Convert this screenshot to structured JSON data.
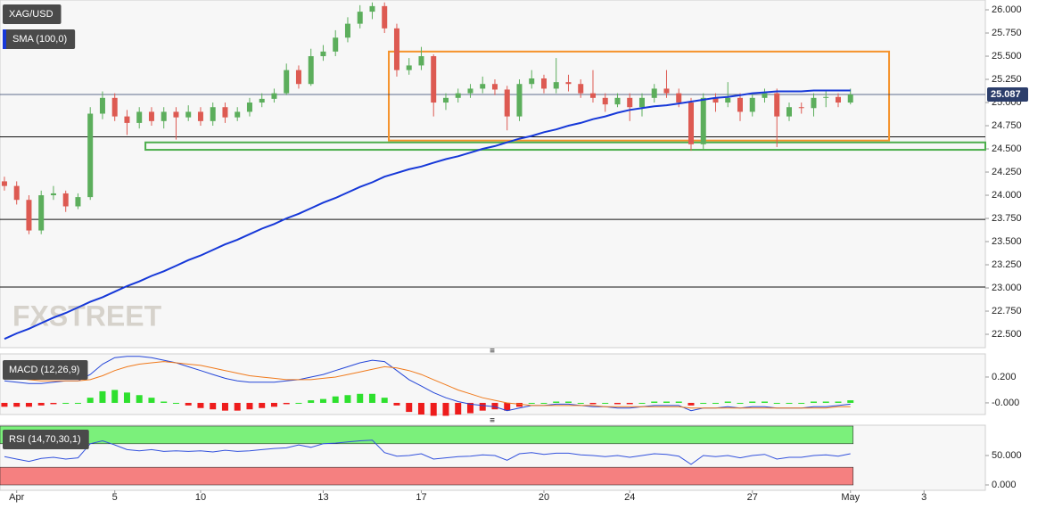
{
  "chart_data": [
    {
      "type": "candlestick",
      "title": "XAG/USD",
      "watermark": "FXSTREET",
      "open": [
        24.15,
        24.1,
        23.95,
        23.62,
        24.0,
        24.02,
        23.88,
        23.98,
        24.88,
        25.05,
        24.85,
        24.78,
        24.9,
        24.8,
        24.9,
        24.84,
        24.9,
        24.8,
        24.95,
        24.84,
        24.9,
        25.0,
        25.04,
        25.1,
        25.35,
        25.2,
        25.5,
        25.55,
        25.7,
        25.85,
        25.98,
        26.04,
        25.8,
        25.35,
        25.4,
        25.5,
        25.0,
        25.05,
        25.1,
        25.15,
        25.2,
        25.14,
        24.85,
        25.2,
        25.26,
        25.15,
        25.22,
        25.2,
        25.1,
        25.05,
        24.98,
        25.05,
        24.95,
        25.05,
        25.15,
        25.1,
        25.0,
        24.55,
        25.05,
        25.0,
        25.05,
        24.9,
        25.05,
        25.1,
        24.85,
        24.95,
        24.94,
        25.05,
        25.06,
        25.0
      ],
      "high": [
        24.2,
        24.15,
        24.0,
        24.05,
        24.1,
        24.05,
        24.02,
        24.95,
        25.12,
        25.1,
        24.92,
        24.95,
        24.95,
        24.95,
        24.95,
        24.97,
        24.95,
        25.0,
        25.0,
        24.95,
        25.05,
        25.1,
        25.15,
        25.42,
        25.4,
        25.58,
        25.62,
        25.78,
        25.92,
        26.05,
        26.08,
        26.08,
        25.85,
        25.48,
        25.6,
        25.52,
        25.1,
        25.15,
        25.2,
        25.28,
        25.25,
        25.18,
        25.25,
        25.35,
        25.3,
        25.48,
        25.3,
        25.25,
        25.35,
        25.1,
        25.1,
        25.1,
        25.1,
        25.2,
        25.35,
        25.15,
        25.05,
        25.1,
        25.1,
        25.22,
        25.1,
        25.1,
        25.15,
        25.15,
        25.0,
        25.0,
        25.1,
        25.12,
        25.1,
        25.15
      ],
      "low": [
        24.05,
        23.9,
        23.58,
        23.58,
        23.95,
        23.82,
        23.85,
        23.95,
        24.82,
        24.8,
        24.65,
        24.72,
        24.75,
        24.72,
        24.6,
        24.8,
        24.75,
        24.75,
        24.78,
        24.8,
        24.85,
        24.95,
        25.0,
        25.08,
        25.15,
        25.18,
        25.45,
        25.5,
        25.65,
        25.8,
        25.9,
        25.75,
        25.28,
        25.3,
        25.35,
        24.85,
        24.92,
        25.0,
        25.05,
        25.1,
        25.08,
        24.7,
        24.8,
        25.15,
        25.1,
        25.1,
        25.12,
        25.05,
        25.0,
        24.9,
        24.95,
        24.8,
        24.85,
        25.0,
        25.05,
        24.95,
        24.48,
        24.5,
        24.9,
        24.95,
        24.8,
        24.85,
        25.0,
        24.52,
        24.8,
        24.88,
        24.85,
        24.95,
        24.95,
        24.98
      ],
      "close": [
        24.1,
        23.95,
        23.62,
        24.0,
        24.02,
        23.88,
        23.98,
        24.88,
        25.05,
        24.85,
        24.78,
        24.9,
        24.8,
        24.9,
        24.84,
        24.9,
        24.8,
        24.95,
        24.84,
        24.9,
        25.0,
        25.04,
        25.1,
        25.35,
        25.2,
        25.5,
        25.55,
        25.7,
        25.85,
        25.98,
        26.04,
        25.8,
        25.35,
        25.4,
        25.5,
        25.0,
        25.05,
        25.1,
        25.15,
        25.2,
        25.14,
        24.85,
        25.2,
        25.26,
        25.15,
        25.22,
        25.2,
        25.1,
        25.05,
        24.98,
        25.05,
        24.95,
        25.05,
        25.15,
        25.1,
        25.0,
        24.55,
        25.05,
        25.0,
        25.05,
        24.9,
        25.05,
        25.1,
        24.85,
        24.95,
        24.94,
        25.05,
        25.06,
        25.0,
        25.087
      ],
      "up_color": "#5cae5c",
      "down_color": "#dd5a52",
      "sma": {
        "name": "SMA (100,0)",
        "color": "#1638d8",
        "values": [
          22.45,
          22.51,
          22.56,
          22.62,
          22.68,
          22.73,
          22.79,
          22.85,
          22.9,
          22.96,
          23.02,
          23.07,
          23.13,
          23.18,
          23.24,
          23.3,
          23.35,
          23.41,
          23.47,
          23.52,
          23.58,
          23.64,
          23.69,
          23.75,
          23.8,
          23.86,
          23.92,
          23.97,
          24.03,
          24.09,
          24.14,
          24.2,
          24.24,
          24.28,
          24.31,
          24.35,
          24.39,
          24.42,
          24.46,
          24.5,
          24.53,
          24.57,
          24.61,
          24.64,
          24.68,
          24.71,
          24.75,
          24.78,
          24.82,
          24.85,
          24.89,
          24.92,
          24.94,
          24.96,
          24.97,
          24.99,
          25.01,
          25.03,
          25.05,
          25.06,
          25.08,
          25.1,
          25.11,
          25.12,
          25.12,
          25.12,
          25.13,
          25.13,
          25.13,
          25.13
        ]
      },
      "last_value": {
        "value": 25.087,
        "label": "25.087"
      },
      "hlines": [
        24.63,
        23.74,
        23.01
      ],
      "rectangles": [
        {
          "x": [
            31.35,
            72.15
          ],
          "y": [
            24.59,
            25.55
          ],
          "color": "#f5922a"
        },
        {
          "x": [
            11.5,
            80
          ],
          "y": [
            24.49,
            24.57
          ],
          "color": "#4cae4c"
        }
      ],
      "xlim": [
        -0.36,
        80
      ],
      "ylim": [
        22.356,
        26.106
      ],
      "yticks": [
        {
          "value": 22.5,
          "label": "22.500"
        },
        {
          "value": 22.75,
          "label": "22.750"
        },
        {
          "value": 23,
          "label": "23.000"
        },
        {
          "value": 23.25,
          "label": "23.250"
        },
        {
          "value": 23.5,
          "label": "23.500"
        },
        {
          "value": 23.75,
          "label": "23.750"
        },
        {
          "value": 24,
          "label": "24.000"
        },
        {
          "value": 24.25,
          "label": "24.250"
        },
        {
          "value": 24.5,
          "label": "24.500"
        },
        {
          "value": 24.75,
          "label": "24.750"
        },
        {
          "value": 25,
          "label": "25.000"
        },
        {
          "value": 25.25,
          "label": "25.250"
        },
        {
          "value": 25.5,
          "label": "25.500"
        },
        {
          "value": 25.75,
          "label": "25.750"
        },
        {
          "value": 26,
          "label": "26.000"
        }
      ]
    },
    {
      "type": "macd",
      "title": "MACD (12,26,9)",
      "macd_line": {
        "color": "#2446d8",
        "values": [
          0.17,
          0.16,
          0.15,
          0.15,
          0.16,
          0.17,
          0.17,
          0.22,
          0.3,
          0.35,
          0.36,
          0.36,
          0.35,
          0.33,
          0.31,
          0.28,
          0.25,
          0.22,
          0.19,
          0.17,
          0.16,
          0.16,
          0.16,
          0.17,
          0.18,
          0.2,
          0.22,
          0.25,
          0.28,
          0.31,
          0.33,
          0.32,
          0.25,
          0.18,
          0.13,
          0.08,
          0.04,
          0.01,
          -0.01,
          -0.02,
          -0.03,
          -0.06,
          -0.04,
          -0.02,
          -0.02,
          -0.01,
          -0.01,
          -0.02,
          -0.03,
          -0.03,
          -0.04,
          -0.04,
          -0.03,
          -0.02,
          -0.02,
          -0.02,
          -0.06,
          -0.04,
          -0.04,
          -0.03,
          -0.04,
          -0.03,
          -0.03,
          -0.04,
          -0.04,
          -0.04,
          -0.03,
          -0.03,
          -0.02,
          -0.01
        ]
      },
      "signal_line": {
        "color": "#f07a1c",
        "values": [
          0.2,
          0.19,
          0.18,
          0.17,
          0.17,
          0.17,
          0.17,
          0.18,
          0.21,
          0.25,
          0.28,
          0.3,
          0.31,
          0.32,
          0.31,
          0.3,
          0.29,
          0.27,
          0.25,
          0.23,
          0.21,
          0.2,
          0.19,
          0.18,
          0.18,
          0.18,
          0.19,
          0.2,
          0.22,
          0.24,
          0.26,
          0.28,
          0.27,
          0.25,
          0.22,
          0.18,
          0.14,
          0.1,
          0.07,
          0.04,
          0.02,
          0.0,
          -0.01,
          -0.02,
          -0.02,
          -0.02,
          -0.02,
          -0.02,
          -0.02,
          -0.03,
          -0.03,
          -0.03,
          -0.03,
          -0.03,
          -0.03,
          -0.03,
          -0.04,
          -0.04,
          -0.04,
          -0.04,
          -0.04,
          -0.04,
          -0.04,
          -0.04,
          -0.04,
          -0.04,
          -0.04,
          -0.04,
          -0.03,
          -0.03
        ]
      },
      "histogram": {
        "up_color": "#2ee02e",
        "down_color": "#ee1c1c",
        "values": [
          -0.03,
          -0.03,
          -0.03,
          -0.02,
          -0.01,
          0,
          0,
          0.04,
          0.09,
          0.1,
          0.08,
          0.06,
          0.04,
          0.01,
          0,
          -0.02,
          -0.04,
          -0.05,
          -0.06,
          -0.06,
          -0.05,
          -0.04,
          -0.03,
          -0.01,
          0,
          0.02,
          0.03,
          0.05,
          0.06,
          0.07,
          0.07,
          0.04,
          -0.02,
          -0.07,
          -0.09,
          -0.1,
          -0.1,
          -0.09,
          -0.08,
          -0.06,
          -0.05,
          -0.06,
          -0.03,
          0,
          0,
          0.01,
          0.01,
          0,
          -0.01,
          0,
          -0.01,
          -0.01,
          0,
          0.01,
          0.01,
          0.01,
          -0.02,
          0,
          0,
          0.01,
          0,
          0.01,
          0.01,
          0,
          0,
          0,
          0.01,
          0.01,
          0.01,
          0.02
        ]
      },
      "xlim": [
        -0.36,
        80
      ],
      "ylim": [
        -0.09,
        0.379
      ],
      "yticks": [
        {
          "value": 0.2,
          "label": "0.200"
        },
        {
          "value": 0,
          "label": "-0.000"
        }
      ]
    },
    {
      "type": "rsi",
      "title": "RSI (14,70,30,1)",
      "rsi_line": {
        "color": "#3352dd",
        "values": [
          48,
          44,
          40,
          45,
          47,
          44,
          46,
          70,
          75,
          68,
          60,
          58,
          60,
          57,
          58,
          57,
          58,
          56,
          59,
          57,
          58,
          60,
          62,
          63,
          68,
          64,
          70,
          71,
          73,
          75,
          76,
          55,
          49,
          50,
          53,
          44,
          46,
          48,
          49,
          51,
          50,
          42,
          53,
          55,
          52,
          54,
          54,
          51,
          50,
          48,
          50,
          47,
          50,
          53,
          52,
          49,
          35,
          50,
          48,
          50,
          46,
          50,
          52,
          44,
          47,
          47,
          50,
          51,
          49,
          53
        ]
      },
      "bands": [
        {
          "from": 70,
          "to": 100,
          "color": "#7bf07b"
        },
        {
          "from": 0,
          "to": 30,
          "color": "#f58080"
        }
      ],
      "xlim": [
        -0.36,
        80
      ],
      "ylim": [
        -9.1,
        101.5
      ],
      "yticks": [
        {
          "value": 50,
          "label": "50.000"
        },
        {
          "value": 0,
          "label": "0.000"
        }
      ],
      "xticks": [
        {
          "value": 1,
          "label": "Apr"
        },
        {
          "value": 9,
          "label": "5"
        },
        {
          "value": 16,
          "label": "10"
        },
        {
          "value": 26,
          "label": "13"
        },
        {
          "value": 34,
          "label": "17"
        },
        {
          "value": 44,
          "label": "20"
        },
        {
          "value": 51,
          "label": "24"
        },
        {
          "value": 61,
          "label": "27"
        },
        {
          "value": 69,
          "label": "May"
        },
        {
          "value": 75,
          "label": "3"
        }
      ]
    }
  ]
}
